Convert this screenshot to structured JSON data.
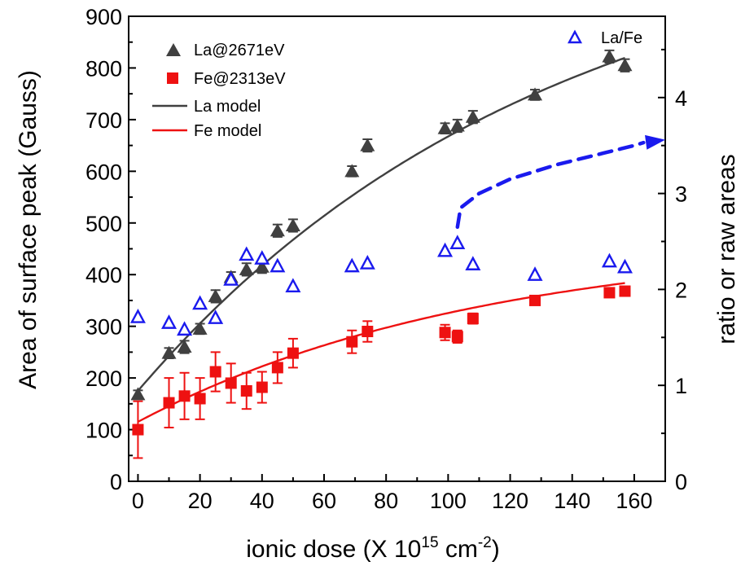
{
  "chart_data": {
    "type": "scatter",
    "xlabel_parts": [
      "ionic dose (X 10",
      "15",
      " cm",
      "-2",
      ")"
    ],
    "ylabel_left": "Area of surface peak (Gauss)",
    "ylabel_right": "ratio or raw areas",
    "xlim": [
      -3,
      170
    ],
    "ylim_left": [
      0,
      900
    ],
    "ylim_right": [
      0,
      4.847
    ],
    "x_ticks": [
      0,
      20,
      40,
      60,
      80,
      100,
      120,
      140,
      160
    ],
    "y_ticks_left": [
      0,
      100,
      200,
      300,
      400,
      500,
      600,
      700,
      800,
      900
    ],
    "y_ticks_right": [
      0,
      1,
      2,
      3,
      4
    ],
    "legend_main": [
      "La@2671eV",
      "Fe@2313eV",
      "La model",
      "Fe model"
    ],
    "legend_right": "La/Fe",
    "series": [
      {
        "name": "La@2671eV",
        "axis": "left",
        "marker": "filled-triangle",
        "color": "#404040",
        "x": [
          0,
          10,
          15,
          20,
          25,
          30,
          35,
          40,
          45,
          50,
          69,
          74,
          99,
          103,
          108,
          128,
          152,
          157
        ],
        "y": [
          168,
          248,
          260,
          295,
          358,
          395,
          410,
          415,
          485,
          495,
          600,
          650,
          683,
          688,
          705,
          748,
          822,
          805
        ],
        "err": [
          8,
          10,
          12,
          10,
          12,
          10,
          12,
          12,
          12,
          12,
          10,
          12,
          10,
          12,
          12,
          10,
          12,
          12
        ]
      },
      {
        "name": "Fe@2313eV",
        "axis": "left",
        "marker": "filled-square",
        "color": "#ee1111",
        "x": [
          0,
          10,
          15,
          20,
          25,
          30,
          35,
          40,
          45,
          50,
          69,
          74,
          99,
          103,
          108,
          128,
          152,
          157
        ],
        "y": [
          100,
          152,
          165,
          160,
          212,
          190,
          175,
          182,
          220,
          248,
          270,
          290,
          288,
          280,
          315,
          350,
          365,
          368
        ],
        "err": [
          55,
          48,
          45,
          40,
          38,
          38,
          35,
          30,
          30,
          28,
          22,
          20,
          15,
          12,
          10,
          8,
          6,
          6
        ]
      },
      {
        "name": "La/Fe",
        "axis": "right",
        "marker": "open-triangle",
        "color": "#1a1aee",
        "x": [
          0,
          10,
          15,
          20,
          25,
          30,
          35,
          40,
          45,
          50,
          69,
          74,
          99,
          103,
          108,
          128,
          152,
          157
        ],
        "y": [
          1.71,
          1.65,
          1.58,
          1.85,
          1.7,
          2.1,
          2.36,
          2.32,
          2.24,
          2.03,
          2.24,
          2.27,
          2.4,
          2.48,
          2.26,
          2.15,
          2.29,
          2.23
        ]
      }
    ],
    "models": [
      {
        "name": "La model",
        "axis": "left",
        "color": "#404040",
        "y0": 175,
        "ymax": 1100,
        "k": 0.0076,
        "x_range": [
          0,
          157
        ]
      },
      {
        "name": "Fe model",
        "axis": "left",
        "color": "#ee1111",
        "y0": 115,
        "ymax": 470,
        "k": 0.009,
        "x_range": [
          0,
          157
        ]
      }
    ],
    "annotation_arrow": {
      "color": "#1a1aee",
      "style": "dashed",
      "points": [
        [
          103,
          2.65
        ],
        [
          104,
          2.85
        ],
        [
          110,
          3.0
        ],
        [
          120,
          3.15
        ],
        [
          135,
          3.3
        ],
        [
          150,
          3.42
        ],
        [
          160,
          3.5
        ],
        [
          163,
          3.53
        ]
      ],
      "head_at": [
        170,
        3.56
      ]
    }
  }
}
